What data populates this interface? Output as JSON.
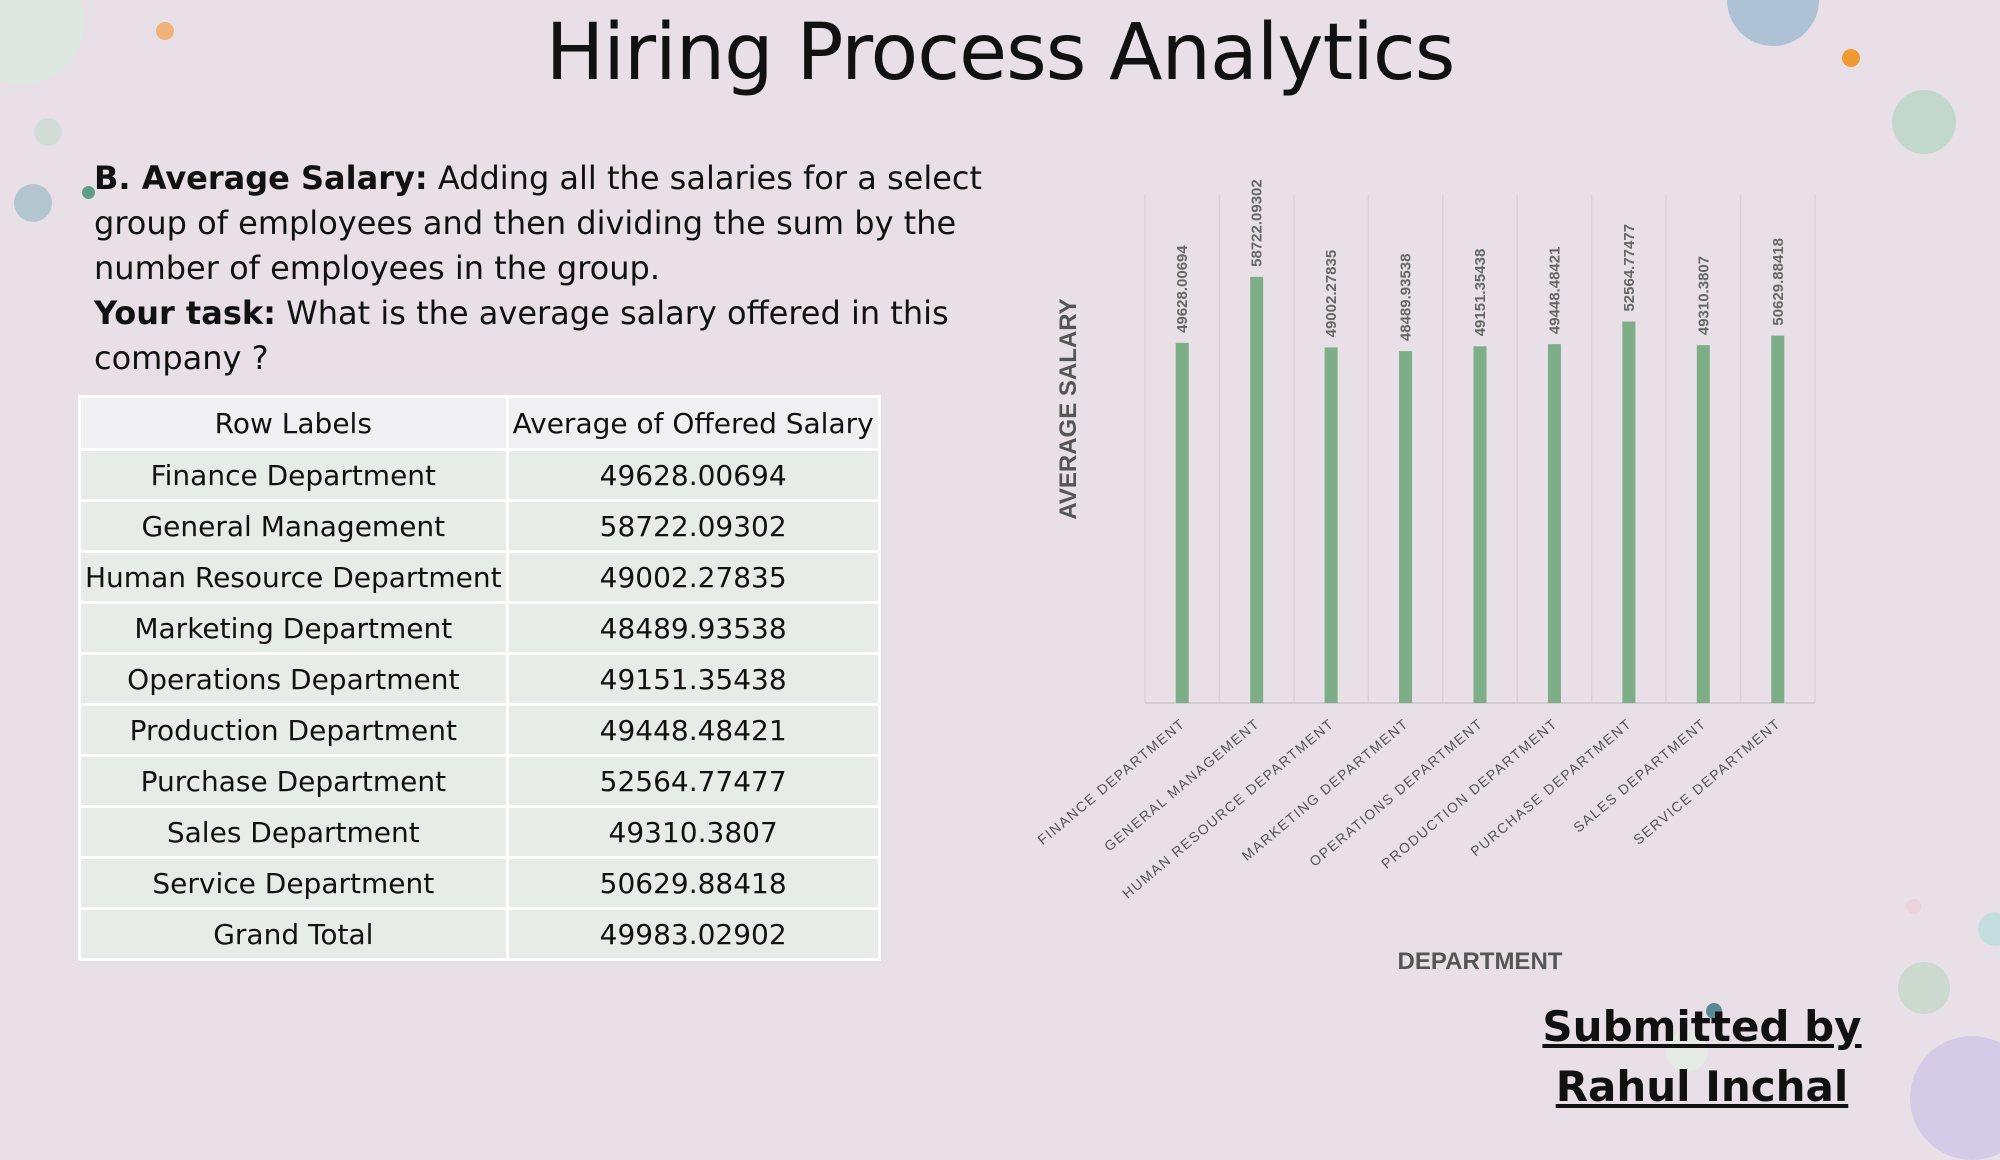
{
  "title": "Hiring Process Analytics",
  "description": {
    "heading": "B. Average Salary:",
    "definition": " Adding all the salaries for a select group of employees and then dividing the sum by the number of employees in the group.",
    "task_label": "Your task:",
    "task_text": " What is the average salary offered in this company ?"
  },
  "table": {
    "headers": [
      "Row Labels",
      "Average of Offered Salary"
    ],
    "rows": [
      [
        "Finance Department",
        "49628.00694"
      ],
      [
        "General Management",
        "58722.09302"
      ],
      [
        "Human Resource Department",
        "49002.27835"
      ],
      [
        "Marketing Department",
        "48489.93538"
      ],
      [
        "Operations Department",
        "49151.35438"
      ],
      [
        "Production Department",
        "49448.48421"
      ],
      [
        "Purchase Department",
        "52564.77477"
      ],
      [
        "Sales Department",
        "49310.3807"
      ],
      [
        "Service Department",
        "50629.88418"
      ],
      [
        "Grand Total",
        "49983.02902"
      ]
    ]
  },
  "chart_data": {
    "type": "bar",
    "xlabel": "DEPARTMENT",
    "ylabel": "AVERAGE SALARY",
    "ylim": [
      0,
      70000
    ],
    "grid": "vertical",
    "legend": "none",
    "color": "#7dae88",
    "categories": [
      "FINANCE DEPARTMENT",
      "GENERAL MANAGEMENT",
      "HUMAN RESOURCE DEPARTMENT",
      "MARKETING DEPARTMENT",
      "OPERATIONS DEPARTMENT",
      "PRODUCTION DEPARTMENT",
      "PURCHASE DEPARTMENT",
      "SALES DEPARTMENT",
      "SERVICE DEPARTMENT"
    ],
    "values": [
      49628.00694,
      58722.09302,
      49002.27835,
      48489.93538,
      49151.35438,
      49448.48421,
      52564.77477,
      49310.3807,
      50629.88418
    ],
    "data_labels": [
      "49628.00694",
      "58722.09302",
      "49002.27835",
      "48489.93538",
      "49151.35438",
      "49448.48421",
      "52564.77477",
      "49310.3807",
      "50629.88418"
    ]
  },
  "footer": {
    "line1": "Submitted by",
    "line2": "Rahul Inchal"
  }
}
